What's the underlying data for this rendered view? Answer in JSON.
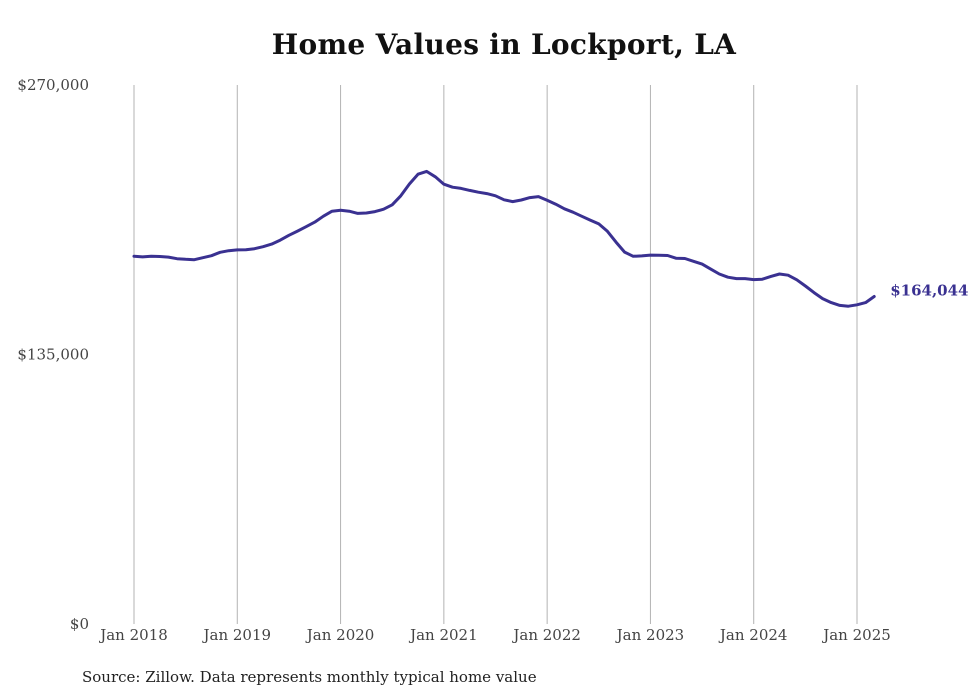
{
  "source_note": "Source: Zillow. Data represents monthly typical home value",
  "colors": {
    "line": "#3a3191",
    "grid": "#b3b3b3",
    "label": "#3a3191"
  },
  "chart_data": {
    "type": "line",
    "title": "Home Values in Lockport, LA",
    "xlabel": "",
    "ylabel": "",
    "ylim": [
      0,
      270000
    ],
    "grid": "vertical",
    "legend": "none",
    "y_ticks": [
      {
        "value": 0,
        "label": "$0"
      },
      {
        "value": 135000,
        "label": "$135,000"
      },
      {
        "value": 270000,
        "label": "$270,000"
      }
    ],
    "x_ticks": [
      "Jan 2018",
      "Jan 2019",
      "Jan 2020",
      "Jan 2021",
      "Jan 2022",
      "Jan 2023",
      "Jan 2024",
      "Jan 2025"
    ],
    "end_label": "$164,044",
    "series": [
      {
        "x": [
          "2018-01",
          "2018-02",
          "2018-03",
          "2018-04",
          "2018-05",
          "2018-06",
          "2018-07",
          "2018-08",
          "2018-09",
          "2018-10",
          "2018-11",
          "2018-12",
          "2019-01",
          "2019-02",
          "2019-03",
          "2019-04",
          "2019-05",
          "2019-06",
          "2019-07",
          "2019-08",
          "2019-09",
          "2019-10",
          "2019-11",
          "2019-12",
          "2020-01",
          "2020-02",
          "2020-03",
          "2020-04",
          "2020-05",
          "2020-06",
          "2020-07",
          "2020-08",
          "2020-09",
          "2020-10",
          "2020-11",
          "2020-12",
          "2021-01",
          "2021-02",
          "2021-03",
          "2021-04",
          "2021-05",
          "2021-06",
          "2021-07",
          "2021-08",
          "2021-09",
          "2021-10",
          "2021-11",
          "2021-12",
          "2022-01",
          "2022-02",
          "2022-03",
          "2022-04",
          "2022-05",
          "2022-06",
          "2022-07",
          "2022-08",
          "2022-09",
          "2022-10",
          "2022-11",
          "2022-12",
          "2023-01",
          "2023-02",
          "2023-03",
          "2023-04",
          "2023-05",
          "2023-06",
          "2023-07",
          "2023-08",
          "2023-09",
          "2023-10",
          "2023-11",
          "2023-12",
          "2024-01",
          "2024-02",
          "2024-03",
          "2024-04",
          "2024-05",
          "2024-06",
          "2024-07",
          "2024-08",
          "2024-09",
          "2024-10",
          "2024-11",
          "2024-12",
          "2025-01",
          "2025-02",
          "2025-03"
        ],
        "values": [
          184200,
          183900,
          184200,
          184100,
          183800,
          183000,
          182700,
          182500,
          183500,
          184500,
          186200,
          187000,
          187400,
          187500,
          188000,
          189000,
          190300,
          192300,
          194700,
          196800,
          199000,
          201300,
          204300,
          206800,
          207300,
          206800,
          205700,
          205900,
          206600,
          207800,
          210000,
          214500,
          220400,
          225300,
          226700,
          224000,
          220300,
          218800,
          218200,
          217200,
          216300,
          215600,
          214500,
          212500,
          211600,
          212400,
          213600,
          214100,
          212300,
          210300,
          208000,
          206300,
          204300,
          202300,
          200400,
          196700,
          191300,
          186300,
          184200,
          184400,
          184800,
          184700,
          184600,
          183200,
          183100,
          181700,
          180300,
          177800,
          175300,
          173700,
          173000,
          173000,
          172500,
          172700,
          174100,
          175300,
          174700,
          172400,
          169300,
          166000,
          163000,
          161000,
          159600,
          159200,
          159900,
          161000,
          164044
        ]
      }
    ]
  }
}
